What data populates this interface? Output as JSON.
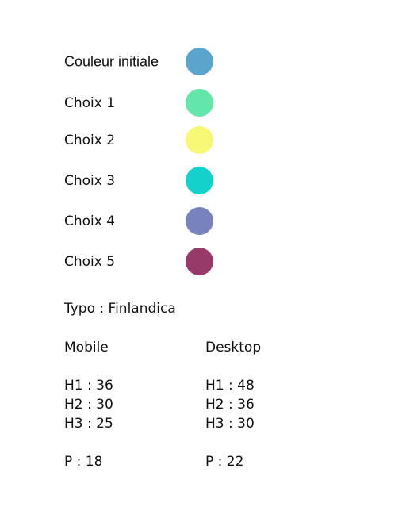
{
  "colors": {
    "initial": {
      "label": "Couleur initiale",
      "color": "#5BA4CC"
    },
    "choices": [
      {
        "label": "Choix 1",
        "color": "#62E6A9"
      },
      {
        "label": "Choix 2",
        "color": "#F6F876"
      },
      {
        "label": "Choix 3",
        "color": "#14D2CB"
      },
      {
        "label": "Choix 4",
        "color": "#7882BC"
      },
      {
        "label": "Choix 5",
        "color": "#983A69"
      }
    ]
  },
  "typography": {
    "font_line": "Typo : Finlandica",
    "mobile": {
      "heading": "Mobile",
      "h1": "H1 : 36",
      "h2": "H2 : 30",
      "h3": "H3 : 25",
      "p": "P : 18"
    },
    "desktop": {
      "heading": "Desktop",
      "h1": "H1 : 48",
      "h2": "H2 : 36",
      "h3": "H3 : 30",
      "p": "P : 22"
    }
  }
}
